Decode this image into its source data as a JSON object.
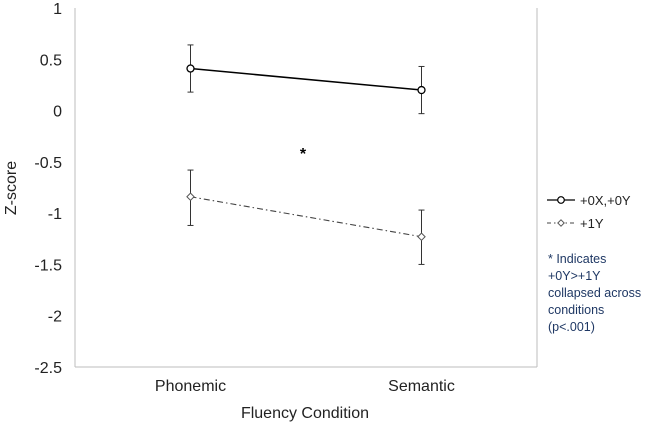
{
  "chart_data": {
    "type": "line",
    "title": "",
    "xlabel": "Fluency Condition",
    "ylabel": "Z-score",
    "categories": [
      "Phonemic",
      "Semantic"
    ],
    "ylim": [
      -2.5,
      1
    ],
    "yticks": [
      1,
      0.5,
      0,
      -0.5,
      -1,
      -1.5,
      -2,
      -2.5
    ],
    "ytick_labels": [
      "1",
      "0.5",
      "0",
      "-0.5",
      "-1",
      "-1.5",
      "-2",
      "-2.5"
    ],
    "grid": false,
    "legend_position": "right",
    "series": [
      {
        "name": "+0X,+0Y",
        "values": [
          0.41,
          0.2
        ],
        "error_low": [
          0.18,
          -0.03
        ],
        "error_high": [
          0.64,
          0.43
        ],
        "line_style": "solid",
        "color": "#000000"
      },
      {
        "name": "+1Y",
        "values": [
          -0.84,
          -1.23
        ],
        "error_low": [
          -1.12,
          -1.5
        ],
        "error_high": [
          -0.58,
          -0.97
        ],
        "line_style": "dash-dot",
        "color": "#444444"
      }
    ],
    "annotations": {
      "marker": "*",
      "note_lines": [
        "* Indicates",
        "+0Y>+1Y",
        "collapsed across",
        "conditions",
        "(p<.001)"
      ]
    }
  }
}
